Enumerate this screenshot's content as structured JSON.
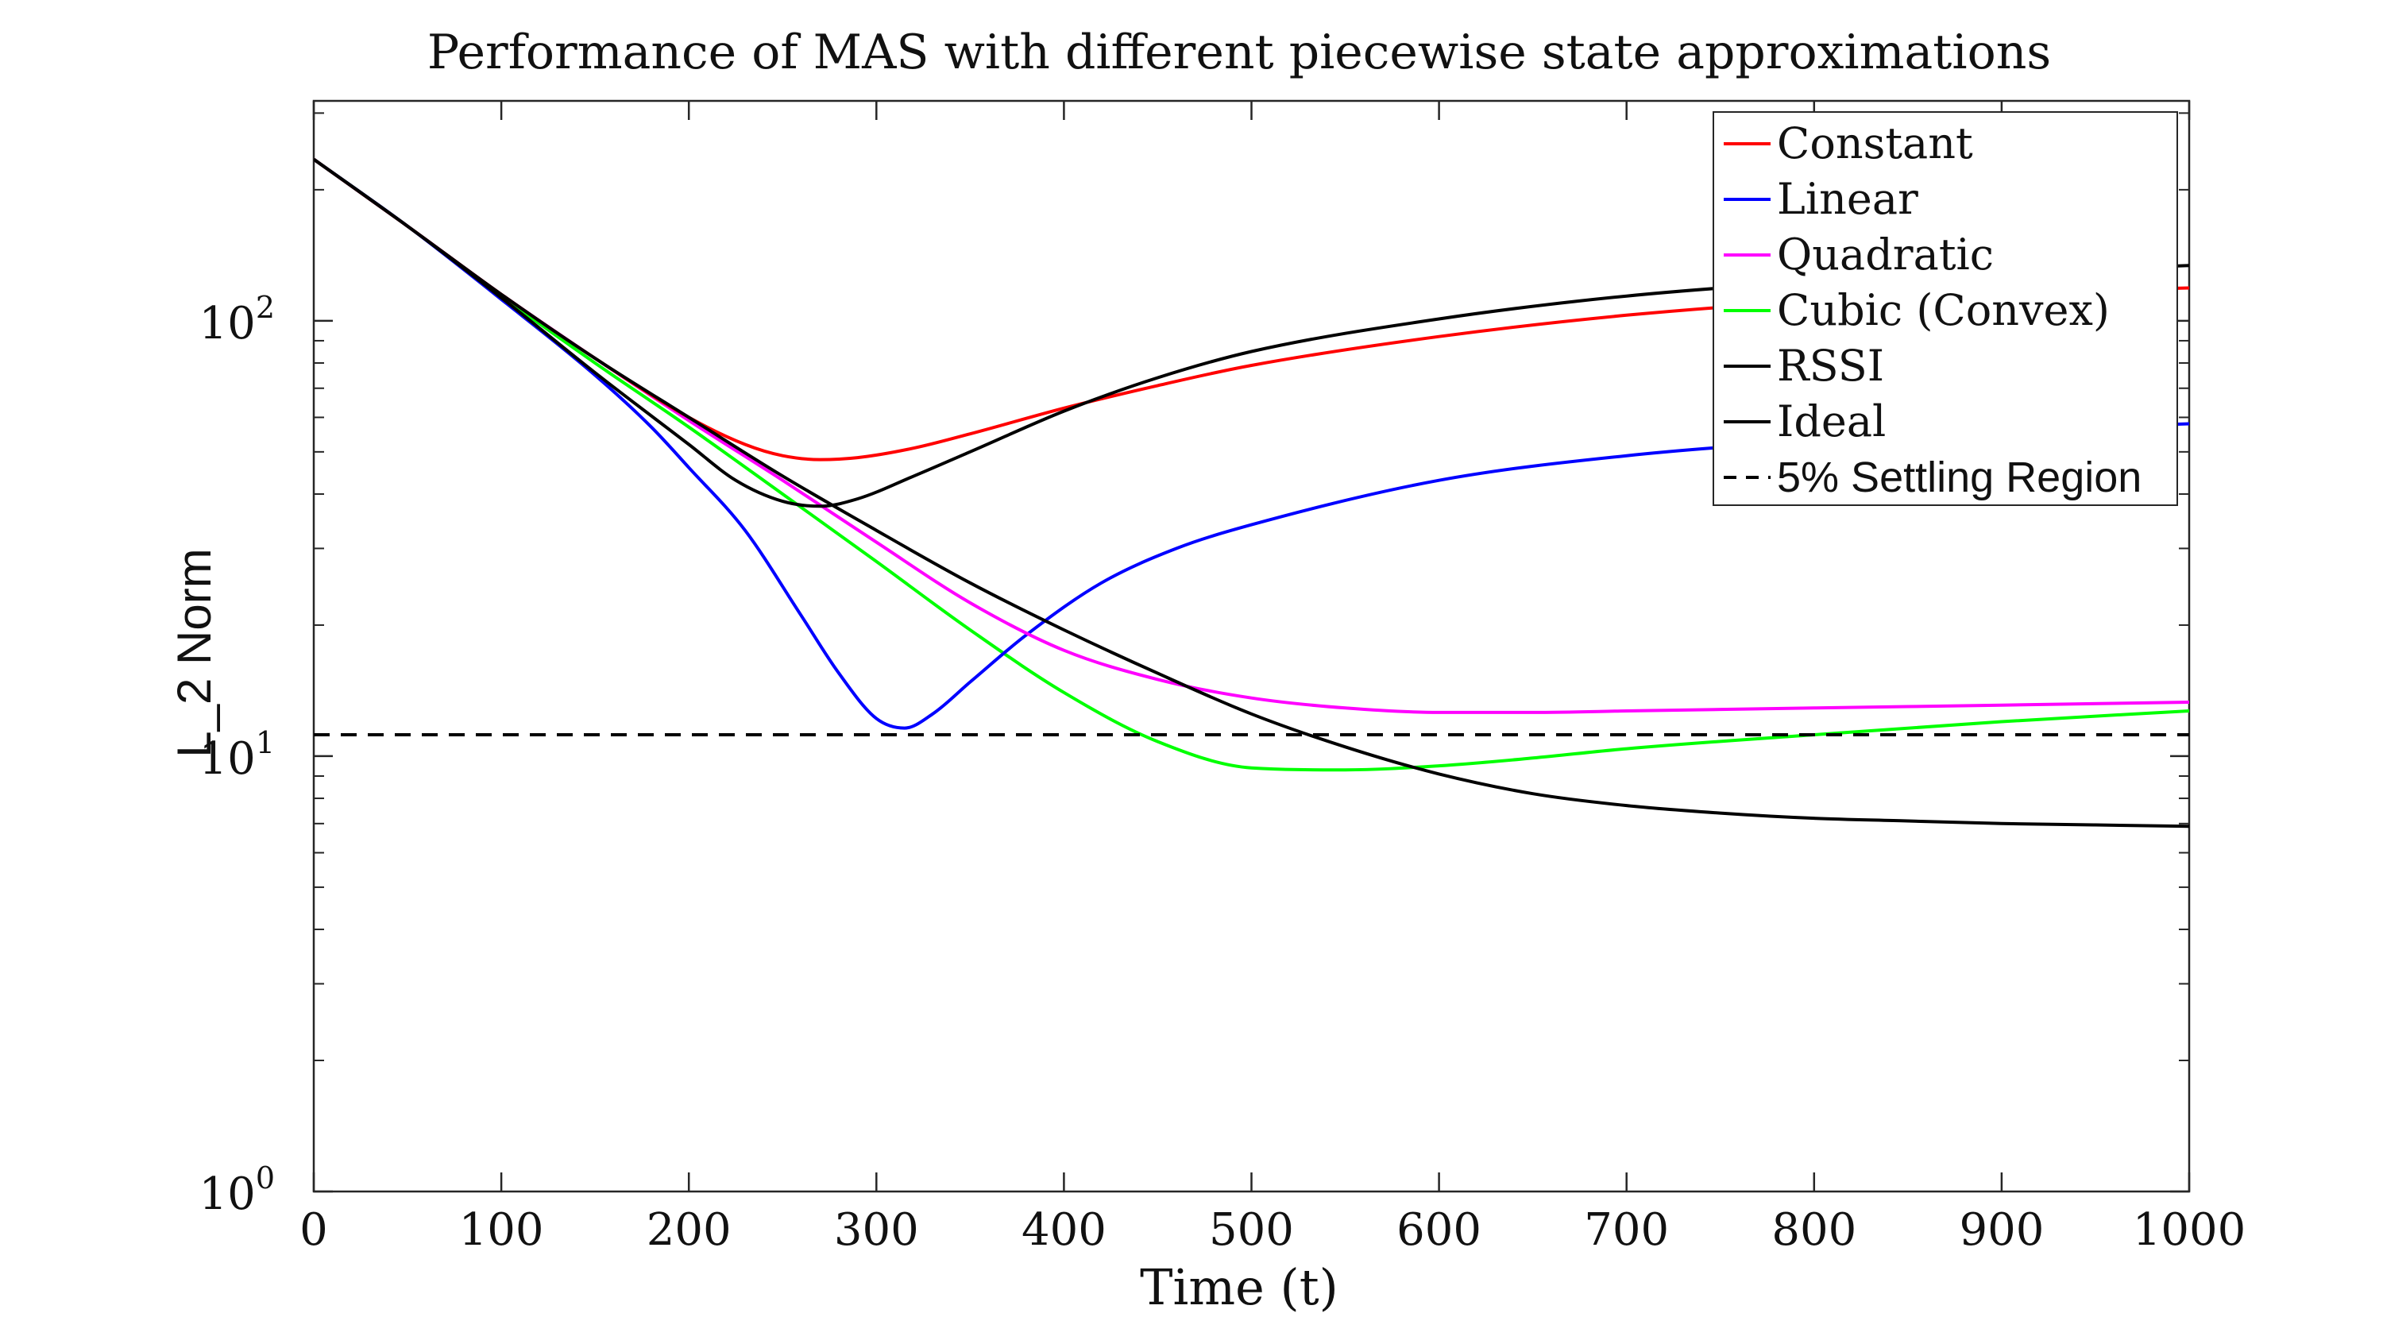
{
  "chart_data": {
    "type": "line",
    "title": "Performance of MAS with different piecewise state approximations",
    "xlabel": "Time (t)",
    "ylabel": "L_2 Norm",
    "y_scale": "log",
    "xlim": [
      0,
      1000
    ],
    "ylim": [
      1,
      320
    ],
    "x_ticks": [
      0,
      100,
      200,
      300,
      400,
      500,
      600,
      700,
      800,
      900,
      1000
    ],
    "x_tick_labels": [
      "0",
      "100",
      "200",
      "300",
      "400",
      "500",
      "600",
      "700",
      "800",
      "900",
      "1000"
    ],
    "y_ticks": [
      1,
      10,
      100
    ],
    "y_tick_labels": [
      {
        "base": "10",
        "exp": "0"
      },
      {
        "base": "10",
        "exp": "1"
      },
      {
        "base": "10",
        "exp": "2"
      }
    ],
    "grid": false,
    "legend_position": "top-right",
    "series": [
      {
        "name": "Constant",
        "color": "#ff0000",
        "dash": "solid",
        "x": [
          0,
          50,
          100,
          150,
          200,
          230,
          250,
          270,
          290,
          320,
          350,
          400,
          450,
          500,
          600,
          700,
          800,
          900,
          1000
        ],
        "y": [
          235,
          165,
          115,
          82,
          60,
          52,
          49,
          48,
          48.5,
          51,
          55,
          63,
          71,
          79,
          92,
          103,
          111,
          116,
          119
        ]
      },
      {
        "name": "Linear",
        "color": "#0000ff",
        "dash": "solid",
        "x": [
          0,
          50,
          100,
          150,
          180,
          200,
          230,
          260,
          280,
          300,
          315,
          330,
          350,
          380,
          420,
          460,
          500,
          600,
          700,
          800,
          900,
          1000
        ],
        "y": [
          235,
          165,
          112,
          75,
          57,
          46,
          33,
          21,
          15.5,
          12.2,
          11.6,
          12.5,
          14.8,
          19,
          25,
          30,
          34,
          43,
          49,
          53,
          56,
          58
        ]
      },
      {
        "name": "Quadratic",
        "color": "#ff00ff",
        "dash": "solid",
        "x": [
          0,
          50,
          100,
          150,
          200,
          250,
          300,
          350,
          400,
          450,
          500,
          550,
          600,
          650,
          700,
          800,
          900,
          1000
        ],
        "y": [
          235,
          165,
          115,
          82,
          59,
          43,
          31,
          22.5,
          17.5,
          15,
          13.6,
          12.9,
          12.6,
          12.6,
          12.7,
          12.9,
          13.1,
          13.3
        ]
      },
      {
        "name": "Cubic (Convex)",
        "color": "#00ff00",
        "dash": "solid",
        "x": [
          0,
          50,
          100,
          150,
          200,
          250,
          300,
          350,
          400,
          450,
          500,
          550,
          600,
          650,
          700,
          800,
          900,
          1000
        ],
        "y": [
          235,
          165,
          114,
          80,
          57,
          40,
          28,
          19.5,
          14,
          10.8,
          9.4,
          9.3,
          9.5,
          9.9,
          10.4,
          11.2,
          12,
          12.7
        ]
      },
      {
        "name": "RSSI",
        "color": "#000000",
        "dash": "solid",
        "x": [
          0,
          50,
          100,
          150,
          200,
          225,
          250,
          270,
          290,
          320,
          350,
          400,
          450,
          500,
          600,
          700,
          800,
          900,
          1000
        ],
        "y": [
          235,
          165,
          113,
          76,
          52,
          43,
          38.5,
          37.5,
          39,
          44,
          50,
          62,
          74,
          85,
          101,
          114,
          123,
          129,
          134
        ]
      },
      {
        "name": "Ideal",
        "color": "#000000",
        "dash": "solid",
        "x": [
          0,
          50,
          100,
          150,
          200,
          250,
          300,
          350,
          400,
          450,
          500,
          550,
          600,
          650,
          700,
          750,
          800,
          850,
          900,
          950,
          1000
        ],
        "y": [
          235,
          165,
          115,
          82,
          60,
          44,
          33,
          25,
          19.5,
          15.5,
          12.5,
          10.5,
          9.1,
          8.2,
          7.7,
          7.4,
          7.2,
          7.1,
          7.0,
          6.95,
          6.9
        ]
      },
      {
        "name": "5% Settling Region",
        "color": "#000000",
        "dash": "dashed",
        "x": [
          0,
          1000
        ],
        "y": [
          11.2,
          11.2
        ]
      }
    ]
  }
}
